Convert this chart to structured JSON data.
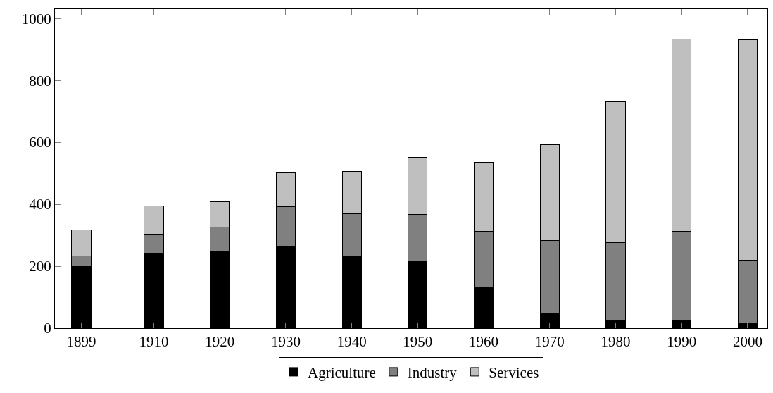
{
  "chart_data": {
    "type": "bar",
    "stacked": true,
    "x": [
      1899,
      1910,
      1920,
      1930,
      1940,
      1950,
      1960,
      1970,
      1980,
      1990,
      2000
    ],
    "series": [
      {
        "name": "Agriculture",
        "color": "#000000",
        "values": [
          200,
          242,
          247,
          265,
          232,
          215,
          133,
          47,
          24,
          24,
          14
        ]
      },
      {
        "name": "Industry",
        "color": "#808080",
        "values": [
          32,
          61,
          80,
          127,
          137,
          152,
          180,
          236,
          253,
          289,
          205
        ]
      },
      {
        "name": "Services",
        "color": "#bfbfbf",
        "values": [
          85,
          91,
          82,
          111,
          136,
          184,
          222,
          309,
          455,
          620,
          712
        ]
      }
    ],
    "xlim": [
      1895,
      2003
    ],
    "xticks": [
      1899,
      1910,
      1920,
      1930,
      1940,
      1950,
      1960,
      1970,
      1980,
      1990,
      2000
    ],
    "ylim": [
      0,
      1030
    ],
    "yticks": [
      0,
      200,
      400,
      600,
      800,
      1000
    ],
    "legend": "bottom"
  }
}
